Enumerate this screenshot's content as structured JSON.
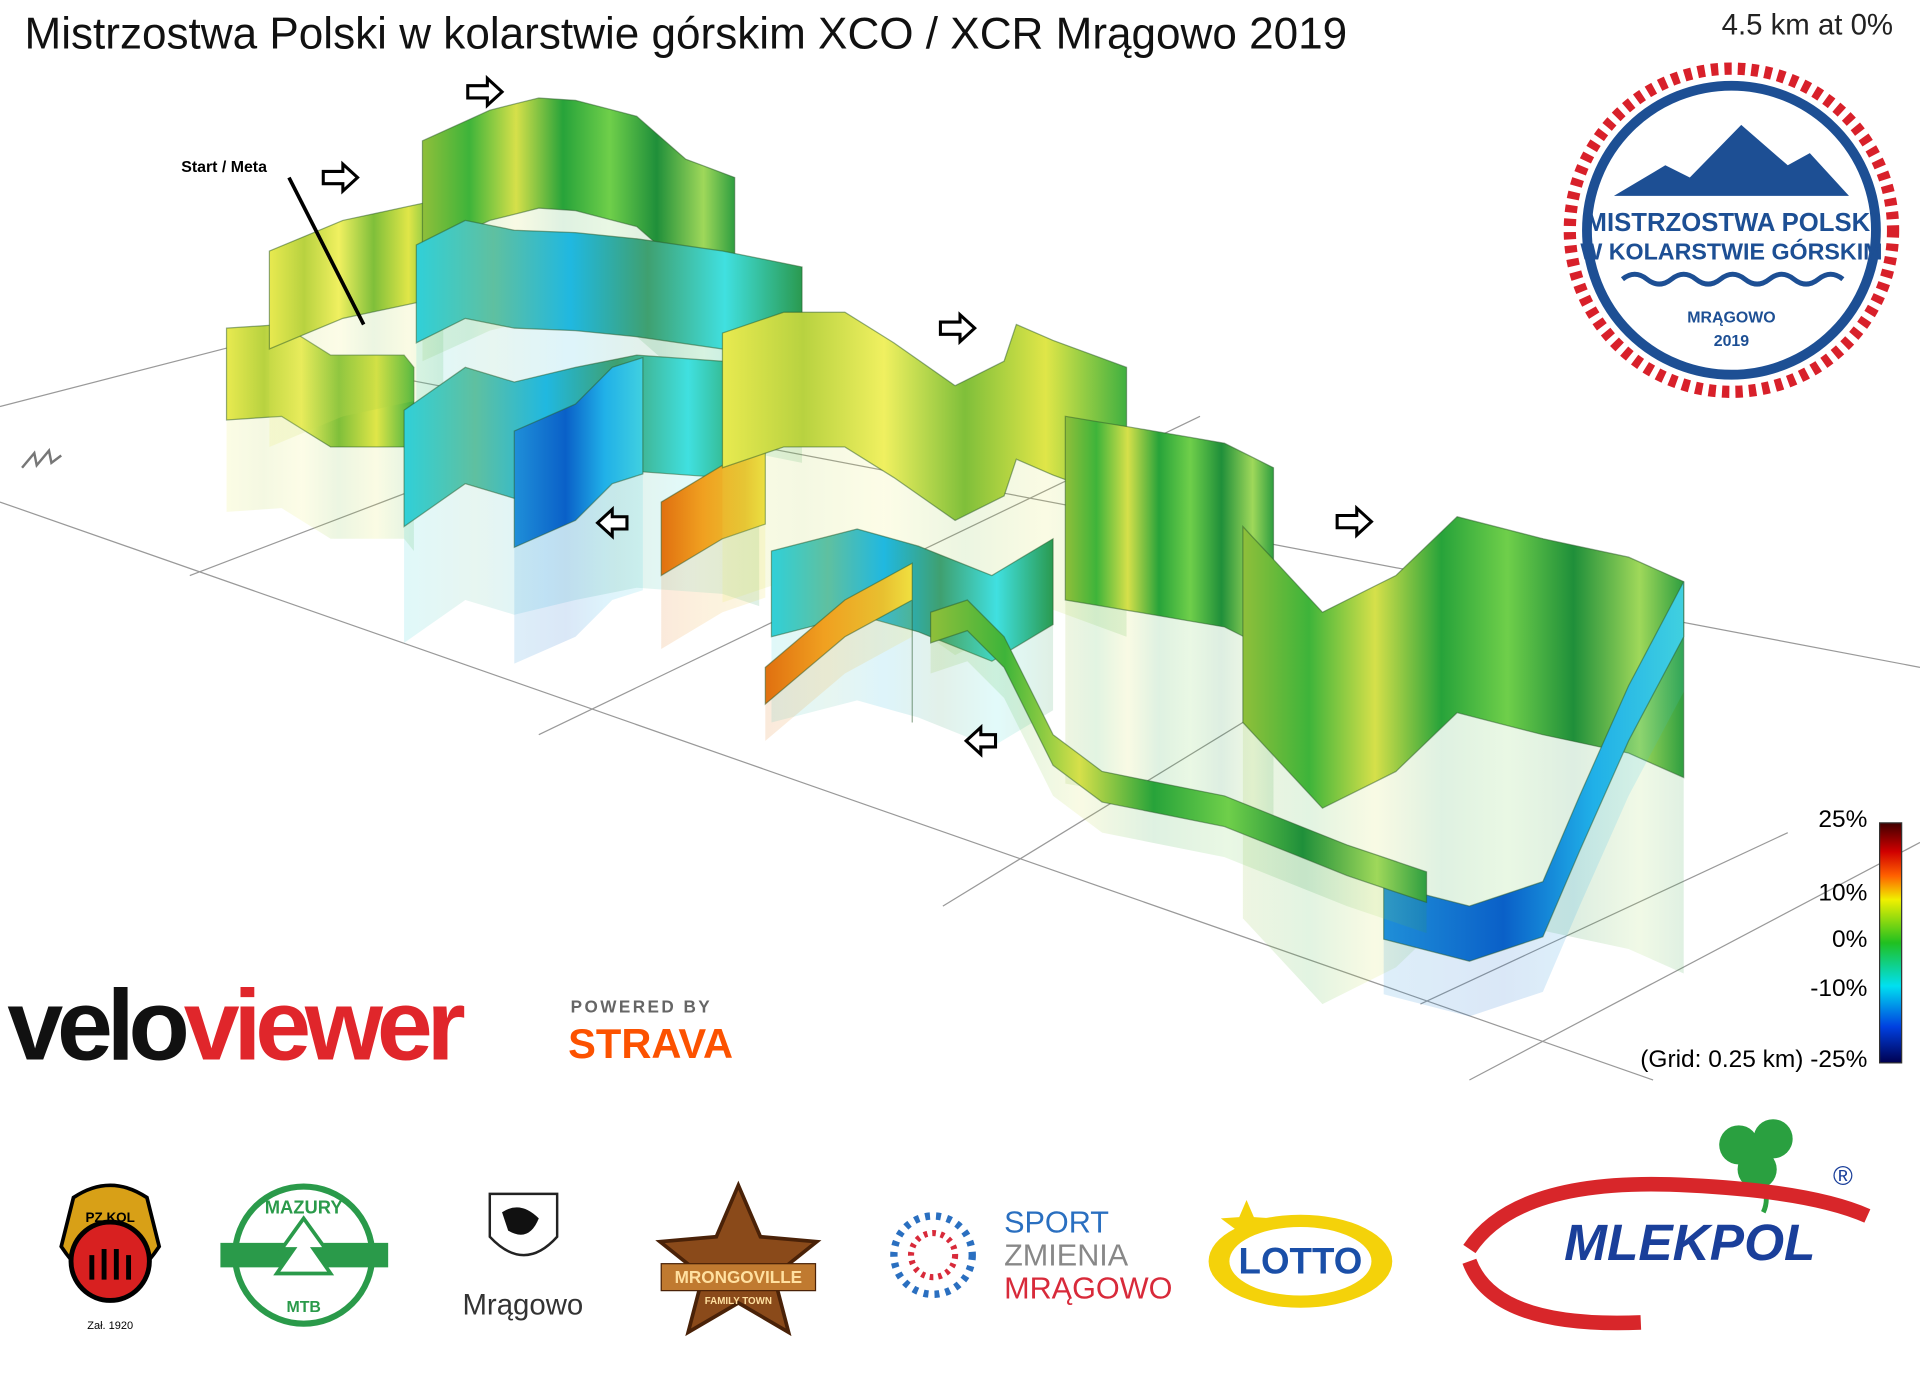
{
  "header": {
    "title": "Mistrzostwa Polski w kolarstwie górskim XCO / XCR Mrągowo 2019",
    "distance": "4.5 km at 0%"
  },
  "annotations": {
    "start": "Start / Meta"
  },
  "legend": {
    "labels": [
      "25%",
      "10%",
      "0%",
      "-10%"
    ],
    "bottom": "(Grid: 0.25 km) -25%"
  },
  "event_badge": {
    "line1": "MISTRZOSTWA POLSKI",
    "line2": "W KOLARSTWIE GÓRSKIM",
    "city": "MRĄGOWO",
    "year": "2019"
  },
  "branding": {
    "velo": "velo",
    "viewer": "viewer",
    "powered_by": "POWERED BY",
    "strava": "STRAVA"
  },
  "sponsors": {
    "pzkol": "PZ.KOL",
    "pzkol_year": "Zał. 1920",
    "mazury": "MAZURY",
    "mtb": "MTB",
    "city": "Mrągowo",
    "mrongoville": "MRONGOVILLE",
    "family_town": "FAMILY TOWN",
    "sport": "SPORT",
    "zmienia": "ZMIENIA",
    "mragowo": "MRĄGOWO",
    "lotto": "LOTTO",
    "mlekpol": "MLEKPOL",
    "registered": "®"
  }
}
